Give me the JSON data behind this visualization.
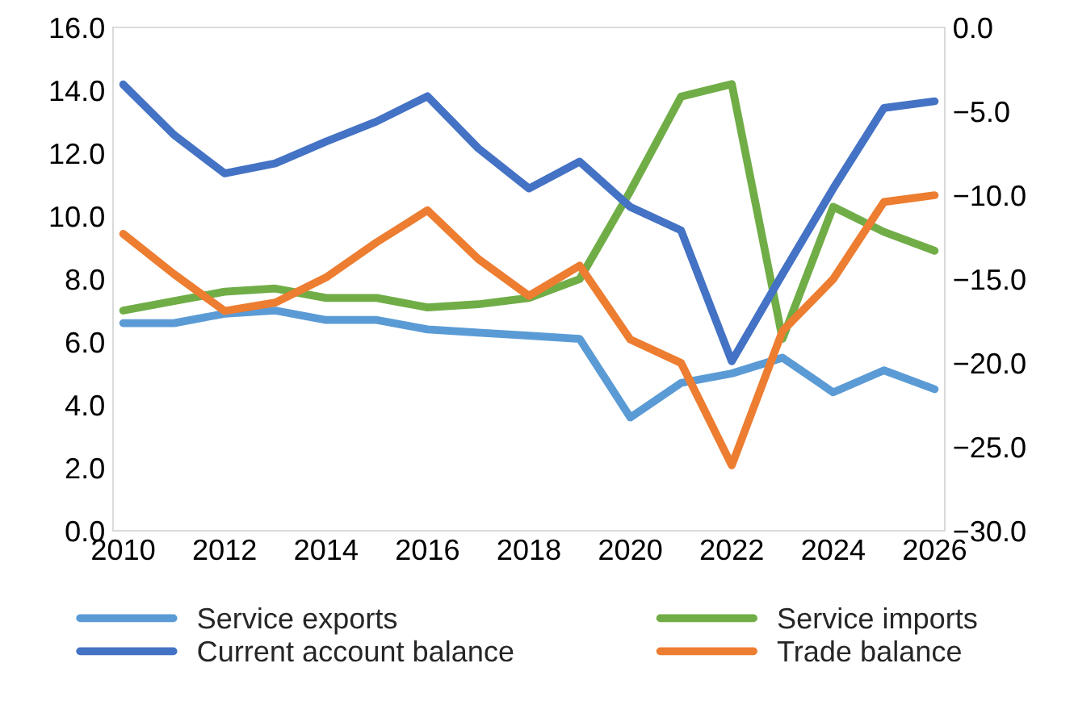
{
  "chart_data": {
    "type": "line",
    "x": [
      2010,
      2011,
      2012,
      2013,
      2014,
      2015,
      2016,
      2017,
      2018,
      2019,
      2020,
      2021,
      2022,
      2023,
      2024,
      2025,
      2026
    ],
    "series": [
      {
        "name": "Service exports",
        "color": "#5b9bd5",
        "values": [
          6.6,
          6.6,
          6.9,
          7.0,
          6.7,
          6.7,
          6.4,
          6.3,
          6.2,
          6.1,
          3.6,
          4.7,
          5.0,
          5.5,
          4.4,
          5.1,
          4.5
        ]
      },
      {
        "name": "Service imports",
        "color": "#70ad47",
        "values": [
          7.0,
          7.3,
          7.6,
          7.7,
          7.4,
          7.4,
          7.1,
          7.2,
          7.4,
          8.0,
          10.8,
          13.8,
          14.2,
          6.1,
          10.3,
          9.5,
          8.9
        ]
      },
      {
        "name": "Current account balance",
        "color": "#4472c4",
        "axis": "y2",
        "values": [
          -3.4,
          -6.4,
          -8.7,
          -8.1,
          -6.8,
          -5.6,
          -4.1,
          -7.2,
          -9.6,
          -8.0,
          -10.7,
          -12.1,
          -19.9,
          -14.7,
          -9.6,
          -4.8,
          -4.4
        ]
      },
      {
        "name": "Trade balance",
        "color": "#ed7d31",
        "axis": "y2",
        "values": [
          -12.3,
          -14.7,
          -16.9,
          -16.4,
          -14.9,
          -12.8,
          -10.9,
          -13.8,
          -16.0,
          -14.2,
          -18.6,
          -20.0,
          -26.1,
          -18.1,
          -15.0,
          -10.4,
          -10.0
        ]
      }
    ],
    "xlim": [
      2009.8,
      2026.2
    ],
    "xticks": [
      2010,
      2012,
      2014,
      2016,
      2018,
      2020,
      2022,
      2024,
      2026
    ],
    "ylim": [
      0,
      16
    ],
    "yticks": [
      {
        "value": 0,
        "label": "0.0"
      },
      {
        "value": 2,
        "label": "2.0"
      },
      {
        "value": 4,
        "label": "4.0"
      },
      {
        "value": 6,
        "label": "6.0"
      },
      {
        "value": 8,
        "label": "8.0"
      },
      {
        "value": 10,
        "label": "10.0"
      },
      {
        "value": 12,
        "label": "12.0"
      },
      {
        "value": 14,
        "label": "14.0"
      },
      {
        "value": 16,
        "label": "16.0"
      }
    ],
    "y2lim": [
      -30,
      0
    ],
    "y2ticks": [
      {
        "value": -30,
        "label": "−30.0"
      },
      {
        "value": -25,
        "label": "−25.0"
      },
      {
        "value": -20,
        "label": "−20.0"
      },
      {
        "value": -15,
        "label": "−15.0"
      },
      {
        "value": -10,
        "label": "−10.0"
      },
      {
        "value": -5,
        "label": "−5.0"
      },
      {
        "value": 0,
        "label": "0.0"
      }
    ],
    "grid": false,
    "legend": "bottom",
    "marker": "none",
    "line_style": "solid"
  }
}
